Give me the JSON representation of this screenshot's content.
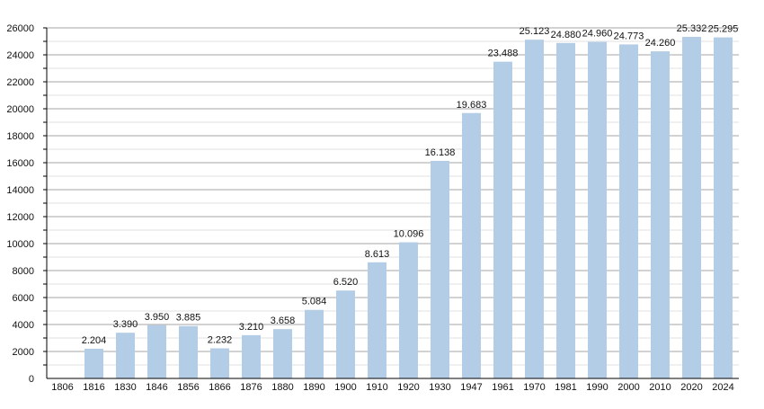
{
  "chart_data": {
    "type": "bar",
    "title": "",
    "xlabel": "",
    "ylabel": "",
    "ylim": [
      0,
      26000
    ],
    "yticks": [
      0,
      2000,
      4000,
      6000,
      8000,
      10000,
      12000,
      14000,
      16000,
      18000,
      20000,
      22000,
      24000,
      26000
    ],
    "grid": true,
    "bar_color": "#b3cde6",
    "categories": [
      "1806",
      "1816",
      "1830",
      "1846",
      "1856",
      "1866",
      "1876",
      "1880",
      "1890",
      "1900",
      "1910",
      "1920",
      "1930",
      "1947",
      "1961",
      "1970",
      "1981",
      "1990",
      "2000",
      "2010",
      "2020",
      "2024"
    ],
    "values": [
      null,
      2204,
      3390,
      3950,
      3885,
      2232,
      3210,
      3658,
      5084,
      6520,
      8613,
      10096,
      16138,
      19683,
      23488,
      25123,
      24880,
      24960,
      24773,
      24260,
      25332,
      25295
    ],
    "data_labels": [
      "",
      "2.204",
      "3.390",
      "3.950",
      "3.885",
      "2.232",
      "3.210",
      "3.658",
      "5.084",
      "6.520",
      "8.613",
      "10.096",
      "16.138",
      "19.683",
      "23.488",
      "25.123",
      "24.880",
      "24.960",
      "24.773",
      "24.260",
      "25.332",
      "25.295"
    ]
  }
}
